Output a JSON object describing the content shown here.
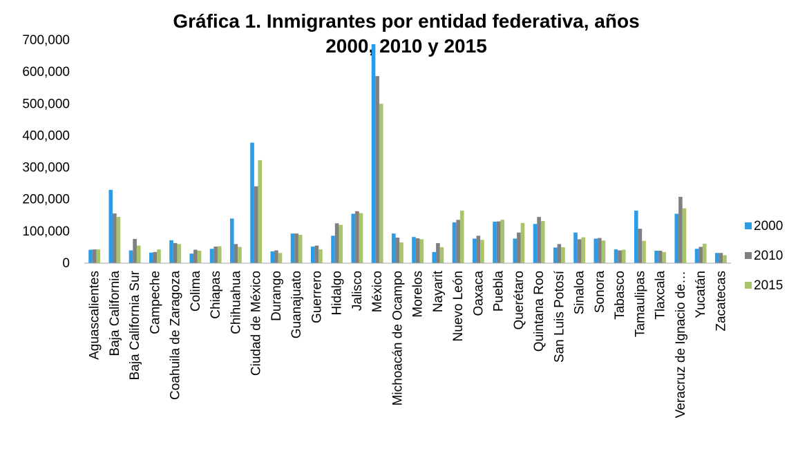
{
  "chart_data": {
    "type": "bar",
    "title": "Gráfica 1. Inmigrantes por entidad federativa, años 2000, 2010 y 2015",
    "title_lines": [
      "Gráfica 1. Inmigrantes por entidad federativa, años",
      "2000, 2010 y 2015"
    ],
    "xlabel": "",
    "ylabel": "",
    "ylim": [
      0,
      700000
    ],
    "yticks": [
      0,
      100000,
      200000,
      300000,
      400000,
      500000,
      600000,
      700000
    ],
    "ytick_labels": [
      "0",
      "100,000",
      "200,000",
      "300,000",
      "400,000",
      "500,000",
      "600,000",
      "700,000"
    ],
    "grid": false,
    "legend_position": "right",
    "categories": [
      "Aguascalientes",
      "Baja California",
      "Baja California Sur",
      "Campeche",
      "Coahuila de Zaragoza",
      "Colima",
      "Chiapas",
      "Chihuahua",
      "Ciudad de México",
      "Durango",
      "Guanajuato",
      "Guerrero",
      "Hidalgo",
      "Jalisco",
      "México",
      "Michoacán de Ocampo",
      "Morelos",
      "Nayarit",
      "Nuevo León",
      "Oaxaca",
      "Puebla",
      "Querétaro",
      "Quintana Roo",
      "San Luis Potosí",
      "Sinaloa",
      "Sonora",
      "Tabasco",
      "Tamaulipas",
      "Tlaxcala",
      "Veracruz de Ignacio de…",
      "Yucatán",
      "Zacatecas"
    ],
    "series": [
      {
        "name": "2000",
        "color": "#2E9BE5",
        "values": [
          42000,
          230000,
          40000,
          33000,
          72000,
          30000,
          45000,
          140000,
          378000,
          37000,
          93000,
          52000,
          86000,
          155000,
          687000,
          93000,
          82000,
          35000,
          128000,
          77000,
          130000,
          77000,
          123000,
          49000,
          96000,
          77000,
          43000,
          165000,
          39000,
          155000,
          45000,
          32000
        ]
      },
      {
        "name": "2010",
        "color": "#808080",
        "values": [
          43000,
          156000,
          76000,
          35000,
          63000,
          42000,
          52000,
          60000,
          241000,
          40000,
          93000,
          55000,
          125000,
          163000,
          587000,
          80000,
          78000,
          63000,
          136000,
          86000,
          131000,
          96000,
          145000,
          60000,
          75000,
          79000,
          40000,
          108000,
          39000,
          208000,
          51000,
          32000
        ]
      },
      {
        "name": "2015",
        "color": "#A9C46C",
        "values": [
          43000,
          145000,
          55000,
          43000,
          60000,
          39000,
          53000,
          51000,
          323000,
          32000,
          89000,
          43000,
          120000,
          157000,
          500000,
          65000,
          75000,
          50000,
          165000,
          73000,
          136000,
          126000,
          132000,
          50000,
          81000,
          71000,
          42000,
          70000,
          35000,
          172000,
          61000,
          25000
        ]
      }
    ]
  }
}
